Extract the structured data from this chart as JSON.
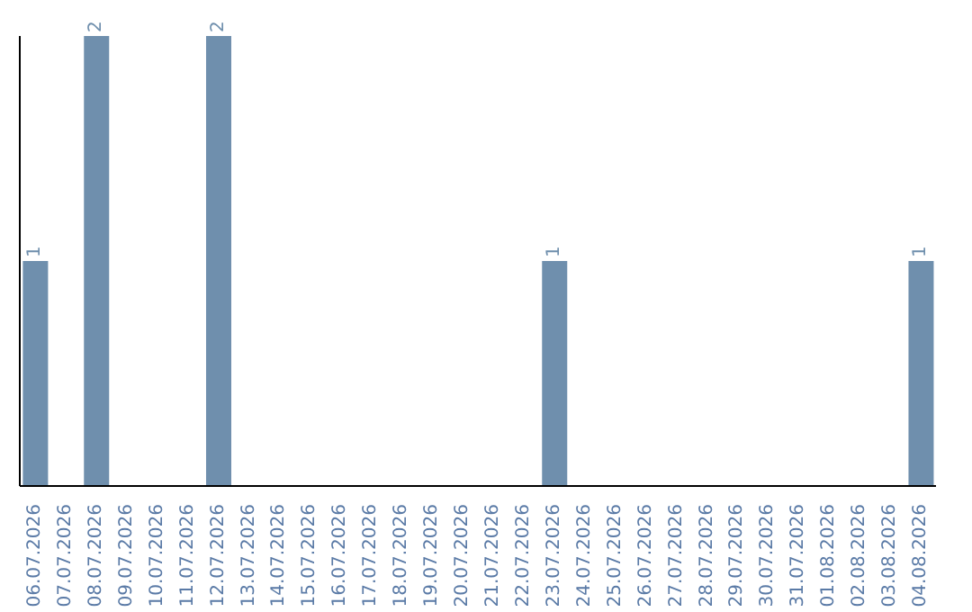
{
  "chart_data": {
    "type": "bar",
    "categories": [
      "06.07.2026",
      "07.07.2026",
      "08.07.2026",
      "09.07.2026",
      "10.07.2026",
      "11.07.2026",
      "12.07.2026",
      "13.07.2026",
      "14.07.2026",
      "15.07.2026",
      "16.07.2026",
      "17.07.2026",
      "18.07.2026",
      "19.07.2026",
      "20.07.2026",
      "21.07.2026",
      "22.07.2026",
      "23.07.2026",
      "24.07.2026",
      "25.07.2026",
      "26.07.2026",
      "27.07.2026",
      "28.07.2026",
      "29.07.2026",
      "30.07.2026",
      "31.07.2026",
      "01.08.2026",
      "02.08.2026",
      "03.08.2026",
      "04.08.2026"
    ],
    "values": [
      1,
      0,
      2,
      0,
      0,
      0,
      2,
      0,
      0,
      0,
      0,
      0,
      0,
      0,
      0,
      0,
      0,
      1,
      0,
      0,
      0,
      0,
      0,
      0,
      0,
      0,
      0,
      0,
      0,
      1
    ],
    "value_labels": [
      "1",
      null,
      "2",
      null,
      null,
      null,
      "2",
      null,
      null,
      null,
      null,
      null,
      null,
      null,
      null,
      null,
      null,
      "1",
      null,
      null,
      null,
      null,
      null,
      null,
      null,
      null,
      null,
      null,
      null,
      "1"
    ],
    "color": "#6f8fad",
    "tick_labels": "x"
  }
}
